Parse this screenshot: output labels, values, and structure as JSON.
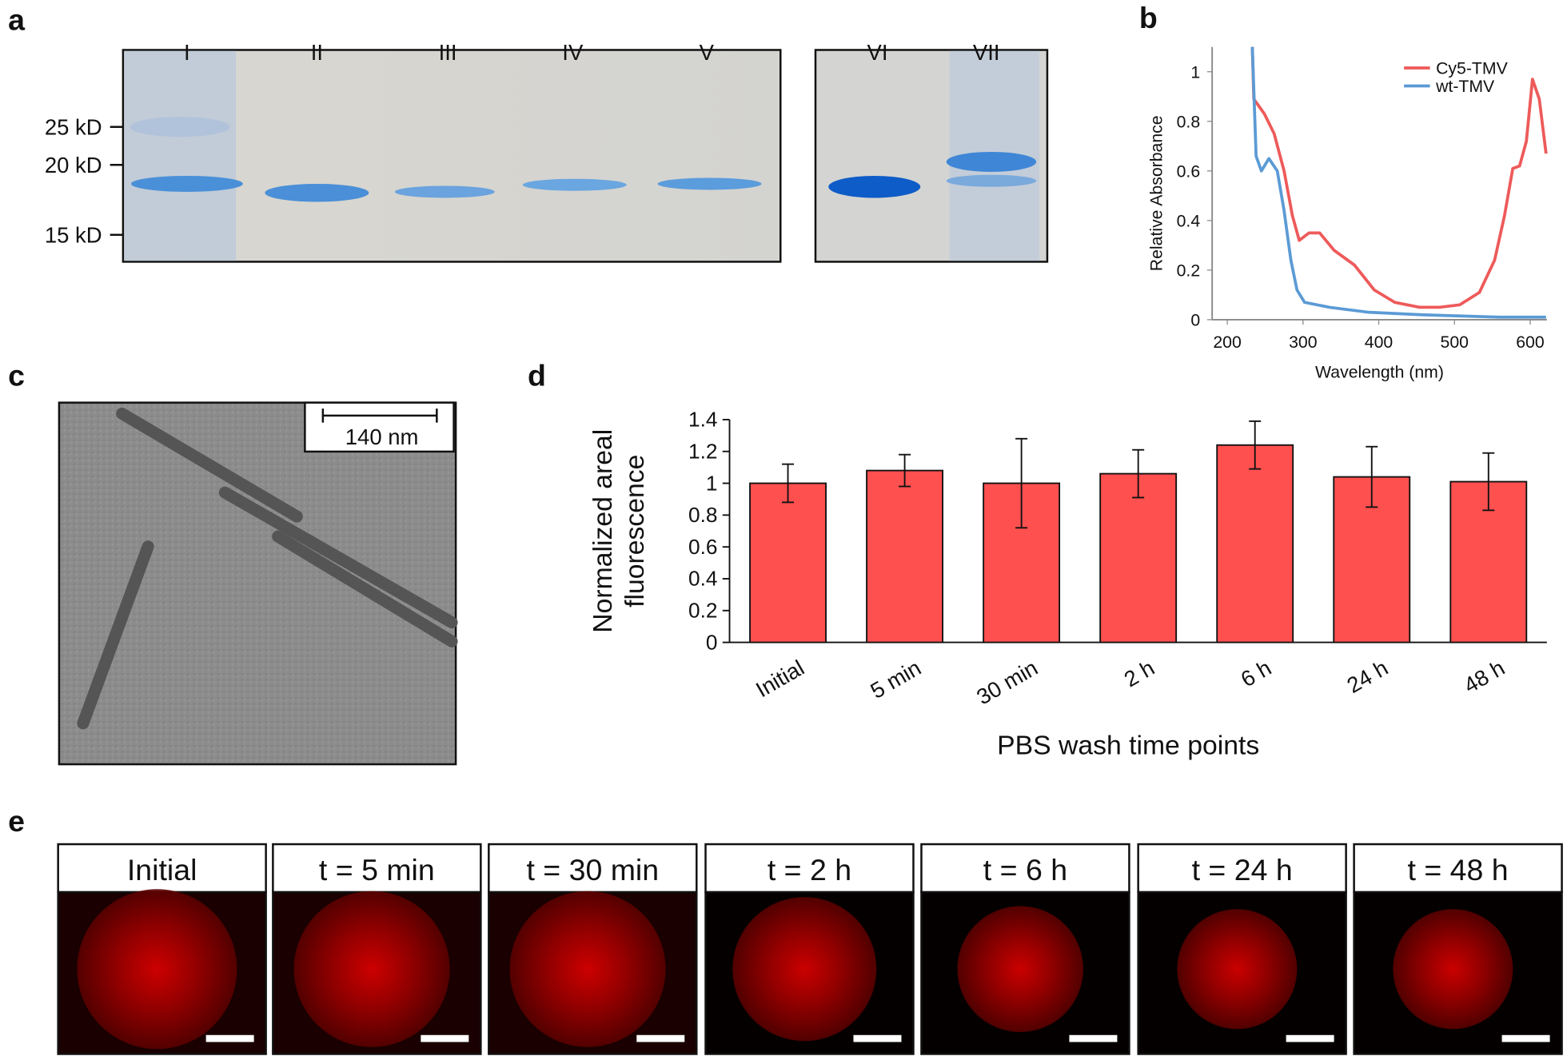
{
  "figure": {
    "panel_labels": [
      "a",
      "b",
      "c",
      "d",
      "e"
    ],
    "panel_a": {
      "lanes": [
        "I",
        "II",
        "III",
        "IV",
        "V",
        "VI",
        "VII"
      ],
      "markers": [
        "25 kD",
        "20 kD",
        "15 kD"
      ]
    },
    "panel_c": {
      "scale_bar": "140 nm"
    },
    "panel_e": {
      "titles": [
        "Initial",
        "t = 5 min",
        "t = 30 min",
        "t = 2 h",
        "t = 6 h",
        "t = 24 h",
        "t = 48 h"
      ]
    }
  },
  "chart_data": [
    {
      "type": "line",
      "xlabel": "Wavelength (nm)",
      "ylabel": "Relative Absorbance",
      "xlim": [
        180,
        622
      ],
      "xticks": [
        200,
        300,
        400,
        500,
        600
      ],
      "ylim": [
        0,
        1.1
      ],
      "yticks": [
        0,
        0.2,
        0.4,
        0.6,
        0.8,
        1
      ],
      "legend": "top-right",
      "series": [
        {
          "name": "Cy5-TMV",
          "color": "#ee5a5a",
          "x": [
            233,
            235,
            249,
            262,
            275,
            286,
            295,
            308,
            322,
            341,
            368,
            394,
            421,
            454,
            480,
            507,
            533,
            553,
            566,
            577,
            586,
            595,
            603,
            612,
            621
          ],
          "values": [
            1.1,
            0.89,
            0.83,
            0.75,
            0.6,
            0.42,
            0.32,
            0.35,
            0.35,
            0.28,
            0.22,
            0.12,
            0.07,
            0.05,
            0.05,
            0.06,
            0.11,
            0.24,
            0.42,
            0.61,
            0.62,
            0.72,
            0.97,
            0.89,
            0.67
          ]
        },
        {
          "name": "wt-TMV",
          "color": "#5b9bd5",
          "x": [
            233,
            238,
            245,
            255,
            266,
            275,
            284,
            292,
            302,
            335,
            387,
            454,
            559,
            621
          ],
          "values": [
            1.1,
            0.66,
            0.6,
            0.65,
            0.6,
            0.44,
            0.24,
            0.12,
            0.07,
            0.05,
            0.03,
            0.02,
            0.01,
            0.01
          ]
        }
      ]
    },
    {
      "type": "bar",
      "xlabel": "PBS wash time points",
      "ylabel": [
        "Normalized areal",
        "fluorescence"
      ],
      "categories": [
        "Initial",
        "5 min",
        "30 min",
        "2 h",
        "6 h",
        "24 h",
        "48 h"
      ],
      "values": [
        1.0,
        1.08,
        1.0,
        1.06,
        1.24,
        1.04,
        1.01
      ],
      "errors": [
        0.12,
        0.1,
        0.28,
        0.15,
        0.15,
        0.19,
        0.18
      ],
      "color": "#ff5050",
      "ylim": [
        0,
        1.4
      ],
      "yticks": [
        0,
        0.2,
        0.4,
        0.6,
        0.8,
        1,
        1.2,
        1.4
      ]
    }
  ]
}
